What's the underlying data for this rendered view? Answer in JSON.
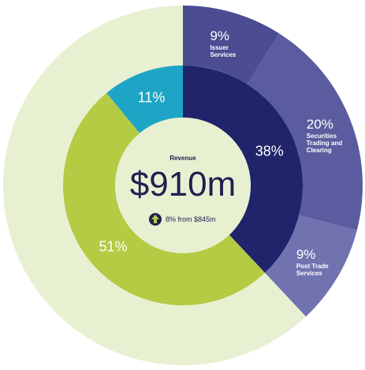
{
  "chart_data": {
    "type": "donut",
    "title": "Revenue",
    "center_value": "$910m",
    "annotation": "8% from $845m",
    "outer": {
      "names": [
        "Issuer Services",
        "Securities Trading and Clearing",
        "Post Trade Services"
      ],
      "values": [
        9,
        20,
        9
      ],
      "value_labels": [
        "9%",
        "20%",
        "9%"
      ],
      "colors": [
        "#4b4c92",
        "#5b5c9f",
        "#7172b0"
      ]
    },
    "inner": {
      "values": [
        38,
        51,
        11
      ],
      "value_labels": [
        "38%",
        "51%",
        "11%"
      ],
      "colors": [
        "#20246a",
        "#b4cb43",
        "#1ea5c6"
      ]
    }
  }
}
